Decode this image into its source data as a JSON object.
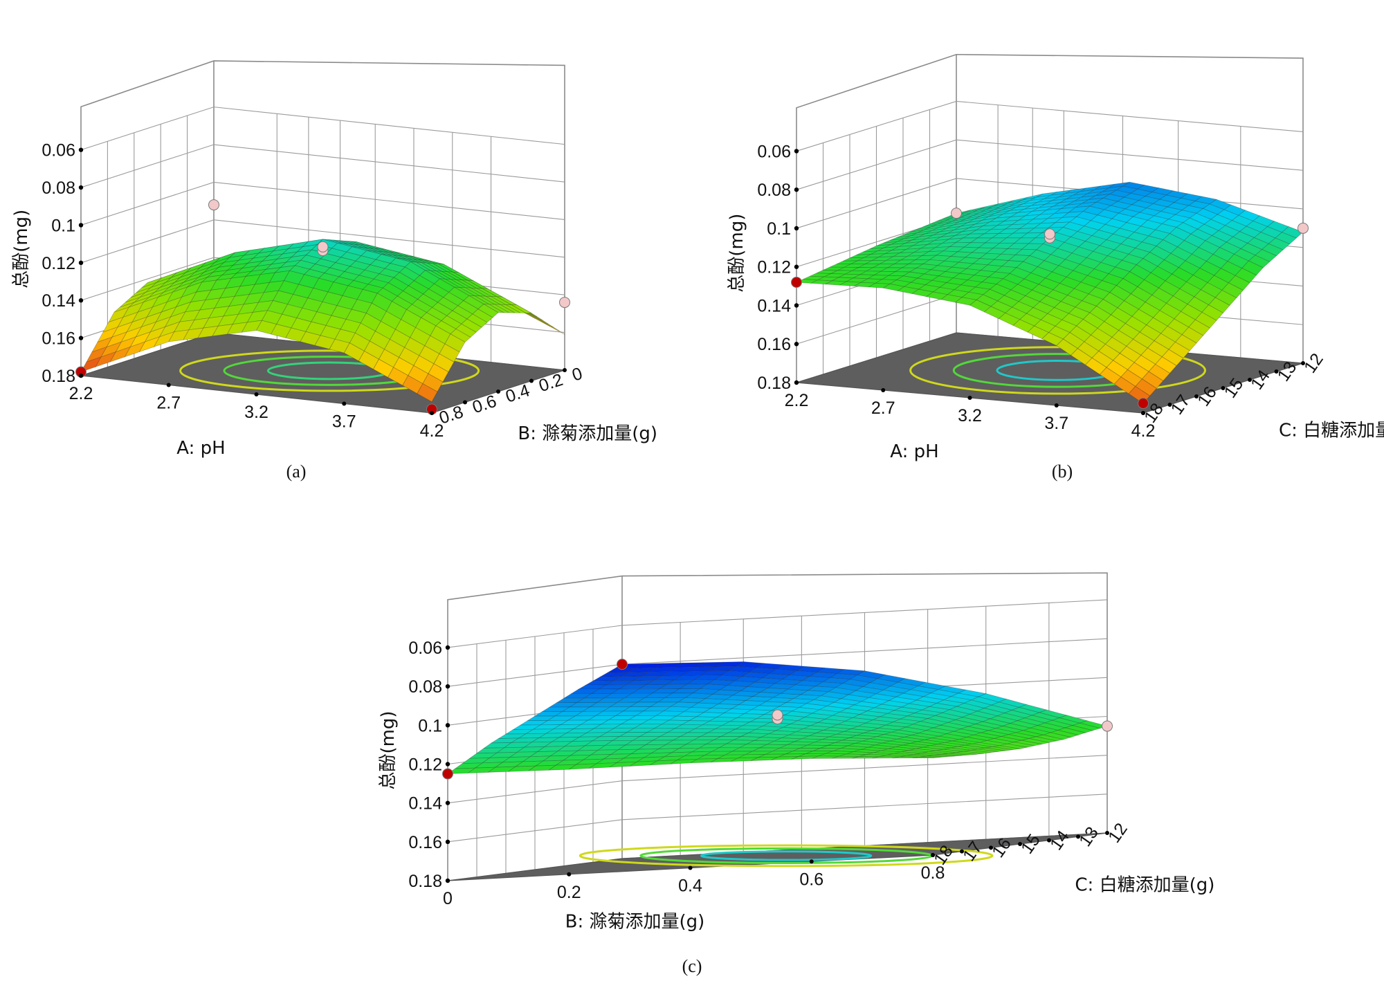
{
  "palette": {
    "low": "#e0301e",
    "mid_low": "#ffd000",
    "mid": "#7fe000",
    "mid_high": "#00e0c8",
    "high": "#0018e0",
    "floor": "#5e5e5e",
    "design_point_high": "#f2c8c8",
    "design_point_low": "#c00000"
  },
  "chart_data": [
    {
      "type": "surface",
      "panel_label": "(a)",
      "zlabel": "总酚(mg)",
      "xlabel": "A: pH",
      "ylabel": "B: 滁菊添加量(g)",
      "x_ticks": [
        "2.2",
        "2.7",
        "3.2",
        "3.7",
        "4.2"
      ],
      "y_ticks": [
        "0",
        "0.2",
        "0.4",
        "0.6",
        "0.8"
      ],
      "z_ticks": [
        "0.06",
        "0.08",
        "0.1",
        "0.12",
        "0.14",
        "0.16",
        "0.18"
      ],
      "x_range": [
        2.2,
        4.2
      ],
      "y_range": [
        0,
        0.8
      ],
      "z_range": [
        0.06,
        0.18
      ],
      "z_axis_inverted": true,
      "surface": {
        "x": [
          2.2,
          2.7,
          3.2,
          3.7,
          4.2
        ],
        "y": [
          0,
          0.2,
          0.4,
          0.6,
          0.8
        ],
        "z": [
          [
            0.165,
            0.145,
            0.135,
            0.141,
            0.161
          ],
          [
            0.148,
            0.127,
            0.116,
            0.123,
            0.144
          ],
          [
            0.142,
            0.121,
            0.109,
            0.116,
            0.138
          ],
          [
            0.152,
            0.131,
            0.12,
            0.127,
            0.148
          ],
          [
            0.178,
            0.157,
            0.146,
            0.153,
            0.174
          ]
        ]
      },
      "design_points": [
        {
          "x": 2.2,
          "y": 0.8,
          "z": 0.178,
          "kind": "below"
        },
        {
          "x": 4.2,
          "y": 0.8,
          "z": 0.178,
          "kind": "below"
        },
        {
          "x": 2.2,
          "y": 0,
          "z": 0.112,
          "kind": "above"
        },
        {
          "x": 3.2,
          "y": 0.4,
          "z": 0.115,
          "kind": "above"
        },
        {
          "x": 3.2,
          "y": 0.4,
          "z": 0.113,
          "kind": "above"
        },
        {
          "x": 4.2,
          "y": 0,
          "z": 0.144,
          "kind": "above"
        }
      ],
      "grid": true
    },
    {
      "type": "surface",
      "panel_label": "(b)",
      "zlabel": "总酚(mg)",
      "xlabel": "A: pH",
      "ylabel": "C: 白糖添加量(g)",
      "x_ticks": [
        "2.2",
        "2.7",
        "3.2",
        "3.7",
        "4.2"
      ],
      "y_ticks": [
        "12",
        "13",
        "14",
        "15",
        "16",
        "17",
        "18"
      ],
      "z_ticks": [
        "0.06",
        "0.08",
        "0.1",
        "0.12",
        "0.14",
        "0.16",
        "0.18"
      ],
      "x_range": [
        2.2,
        4.2
      ],
      "y_range": [
        12,
        18
      ],
      "z_range": [
        0.06,
        0.18
      ],
      "z_axis_inverted": true,
      "surface": {
        "x": [
          2.2,
          2.7,
          3.2,
          3.7,
          4.2
        ],
        "y": [
          12,
          13.5,
          15,
          16.5,
          18
        ],
        "z": [
          [
            0.118,
            0.104,
            0.094,
            0.099,
            0.112
          ],
          [
            0.12,
            0.108,
            0.1,
            0.107,
            0.124
          ],
          [
            0.122,
            0.114,
            0.11,
            0.12,
            0.141
          ],
          [
            0.125,
            0.121,
            0.122,
            0.135,
            0.158
          ],
          [
            0.128,
            0.127,
            0.132,
            0.149,
            0.175
          ]
        ]
      },
      "design_points": [
        {
          "x": 2.2,
          "y": 18,
          "z": 0.128,
          "kind": "below"
        },
        {
          "x": 4.2,
          "y": 18,
          "z": 0.175,
          "kind": "below"
        },
        {
          "x": 2.2,
          "y": 12,
          "z": 0.118,
          "kind": "above"
        },
        {
          "x": 3.2,
          "y": 15,
          "z": 0.11,
          "kind": "above"
        },
        {
          "x": 3.2,
          "y": 15,
          "z": 0.108,
          "kind": "above"
        },
        {
          "x": 4.2,
          "y": 12,
          "z": 0.11,
          "kind": "above"
        }
      ],
      "grid": true
    },
    {
      "type": "surface",
      "panel_label": "(c)",
      "zlabel": "总酚(mg)",
      "xlabel": "B: 滁菊添加量(g)",
      "ylabel": "C: 白糖添加量(g)",
      "x_ticks": [
        "0",
        "0.2",
        "0.4",
        "0.6",
        "0.8"
      ],
      "y_ticks": [
        "12",
        "13",
        "14",
        "15",
        "16",
        "17",
        "18"
      ],
      "z_ticks": [
        "0.06",
        "0.08",
        "0.1",
        "0.12",
        "0.14",
        "0.16",
        "0.18"
      ],
      "x_range": [
        0,
        0.8
      ],
      "y_range": [
        12,
        18
      ],
      "z_range": [
        0.06,
        0.18
      ],
      "z_axis_inverted": true,
      "surface": {
        "x": [
          0,
          0.2,
          0.4,
          0.6,
          0.8
        ],
        "y": [
          12,
          13.5,
          15,
          16.5,
          18
        ],
        "z": [
          [
            0.08,
            0.082,
            0.09,
            0.105,
            0.125
          ],
          [
            0.09,
            0.093,
            0.1,
            0.112,
            0.129
          ],
          [
            0.101,
            0.104,
            0.109,
            0.118,
            0.131
          ],
          [
            0.112,
            0.114,
            0.117,
            0.122,
            0.131
          ],
          [
            0.125,
            0.126,
            0.126,
            0.127,
            0.13
          ]
        ]
      },
      "design_points": [
        {
          "x": 0,
          "y": 18,
          "z": 0.125,
          "kind": "below"
        },
        {
          "x": 0,
          "y": 12,
          "z": 0.08,
          "kind": "below"
        },
        {
          "x": 0.4,
          "y": 15,
          "z": 0.109,
          "kind": "above"
        },
        {
          "x": 0.4,
          "y": 15,
          "z": 0.107,
          "kind": "above"
        },
        {
          "x": 0.8,
          "y": 12,
          "z": 0.125,
          "kind": "above"
        }
      ],
      "grid": true
    }
  ]
}
